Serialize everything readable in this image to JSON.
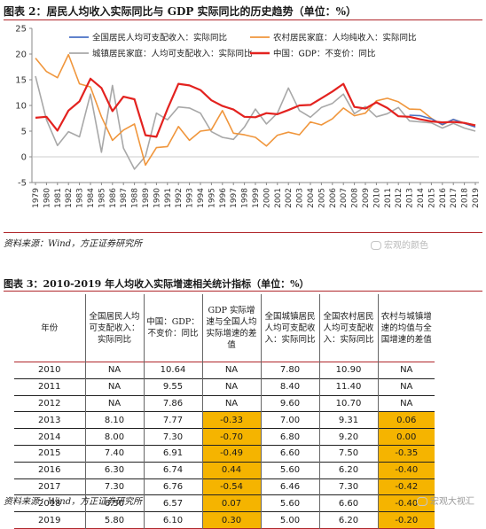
{
  "figure2": {
    "title": "图表 2：居民人均收入实际同比与 GDP 实际同比的历史趋势（单位：%）",
    "source": "资料来源：Wind，方正证券研究所",
    "watermark": "宏观的颜色"
  },
  "chart_data": {
    "type": "line",
    "x": [
      "1979",
      "1980",
      "1981",
      "1982",
      "1983",
      "1984",
      "1985",
      "1986",
      "1987",
      "1988",
      "1989",
      "1990",
      "1991",
      "1992",
      "1993",
      "1994",
      "1995",
      "1996",
      "1997",
      "1998",
      "1999",
      "2000",
      "2001",
      "2002",
      "2003",
      "2004",
      "2005",
      "2006",
      "2007",
      "2008",
      "2009",
      "2010",
      "2011",
      "2012",
      "2013",
      "2014",
      "2015",
      "2016",
      "2017",
      "2018",
      "2019"
    ],
    "ylim": [
      -5,
      25
    ],
    "yticks": [
      "-5",
      "0",
      "5",
      "10",
      "15",
      "20",
      "25"
    ],
    "legend": "top, inside, 2 columns",
    "grid": false,
    "series": [
      {
        "name": "全国居民人均可支配收入：实际同比",
        "color": "#4a70c4",
        "values": [
          null,
          null,
          null,
          null,
          null,
          null,
          null,
          null,
          null,
          null,
          null,
          null,
          null,
          null,
          null,
          null,
          null,
          null,
          null,
          null,
          null,
          null,
          null,
          null,
          null,
          null,
          null,
          null,
          null,
          null,
          null,
          null,
          null,
          null,
          8.1,
          8.0,
          7.4,
          6.3,
          7.3,
          6.5,
          5.8
        ]
      },
      {
        "name": "农村居民家庭：人均纯收入：实际同比",
        "color": "#f0963c",
        "values": [
          19.2,
          16.6,
          15.4,
          19.9,
          14.2,
          13.6,
          7.8,
          3.2,
          5.2,
          6.4,
          -1.6,
          1.8,
          2.0,
          5.9,
          3.2,
          5.0,
          5.3,
          9.0,
          4.6,
          4.3,
          3.8,
          2.1,
          4.2,
          4.8,
          4.3,
          6.8,
          6.2,
          7.4,
          9.5,
          8.0,
          8.5,
          10.9,
          11.4,
          10.7,
          9.3,
          9.2,
          7.5,
          6.2,
          7.3,
          6.6,
          6.2
        ]
      },
      {
        "name": "城镇居民家庭：人均可支配收入：实际同比",
        "color": "#a8a8a8",
        "values": [
          15.7,
          7.2,
          2.2,
          4.9,
          3.9,
          12.2,
          0.9,
          13.9,
          1.7,
          -2.4,
          0.1,
          8.5,
          7.2,
          9.7,
          9.5,
          8.5,
          4.9,
          3.8,
          3.4,
          5.8,
          9.3,
          6.4,
          8.5,
          13.4,
          9.0,
          7.7,
          9.6,
          10.4,
          12.2,
          8.4,
          9.8,
          7.8,
          8.4,
          9.6,
          7.0,
          6.8,
          6.6,
          5.6,
          6.5,
          5.6,
          5.0
        ]
      },
      {
        "name": "中国：GDP：不变价：同比",
        "color": "#e3221f",
        "values": [
          7.6,
          7.8,
          5.1,
          9.0,
          10.8,
          15.2,
          13.4,
          8.9,
          11.7,
          11.2,
          4.2,
          3.9,
          9.3,
          14.2,
          13.9,
          13.0,
          11.0,
          9.9,
          9.2,
          7.8,
          7.7,
          8.5,
          8.3,
          9.1,
          10.0,
          10.1,
          11.4,
          12.7,
          14.2,
          9.7,
          9.4,
          10.6,
          9.5,
          7.9,
          7.8,
          7.3,
          6.9,
          6.7,
          6.8,
          6.6,
          6.1
        ]
      }
    ]
  },
  "table": {
    "title": "图表 3：2010-2019 年人均收入实际增速相关统计指标（单位：%）",
    "headers": [
      "年份",
      "全国居民人均可支配收入：实际同比",
      "中国：GDP：不变价：同比",
      "GDP 实际增速与全国人均实际增速的差值",
      "全国城镇居民人均可支配收入：实际同比",
      "全国农村居民人均可支配收入：实际同比",
      "农村与城镇增速的均值与全国增速的差值"
    ],
    "rows": [
      {
        "year": "2010",
        "national": "NA",
        "gdp": "10.64",
        "gap": "NA",
        "urban": "7.80",
        "rural": "10.90",
        "ur_gap": "NA"
      },
      {
        "year": "2011",
        "national": "NA",
        "gdp": "9.55",
        "gap": "NA",
        "urban": "8.40",
        "rural": "11.40",
        "ur_gap": "NA"
      },
      {
        "year": "2012",
        "national": "NA",
        "gdp": "7.86",
        "gap": "NA",
        "urban": "9.60",
        "rural": "10.70",
        "ur_gap": "NA"
      },
      {
        "year": "2013",
        "national": "8.10",
        "gdp": "7.77",
        "gap": "-0.33",
        "urban": "7.00",
        "rural": "9.31",
        "ur_gap": "0.06"
      },
      {
        "year": "2014",
        "national": "8.00",
        "gdp": "7.30",
        "gap": "-0.70",
        "urban": "6.80",
        "rural": "9.20",
        "ur_gap": "0.00"
      },
      {
        "year": "2015",
        "national": "7.40",
        "gdp": "6.91",
        "gap": "-0.49",
        "urban": "6.60",
        "rural": "7.50",
        "ur_gap": "-0.35"
      },
      {
        "year": "2016",
        "national": "6.30",
        "gdp": "6.74",
        "gap": "0.44",
        "urban": "5.60",
        "rural": "6.20",
        "ur_gap": "-0.40"
      },
      {
        "year": "2017",
        "national": "7.30",
        "gdp": "6.76",
        "gap": "-0.54",
        "urban": "6.46",
        "rural": "7.30",
        "ur_gap": "-0.42"
      },
      {
        "year": "2018",
        "national": "6.50",
        "gdp": "6.57",
        "gap": "0.07",
        "urban": "5.60",
        "rural": "6.60",
        "ur_gap": "-0.40"
      },
      {
        "year": "2019",
        "national": "5.80",
        "gdp": "6.10",
        "gap": "0.30",
        "urban": "5.00",
        "rural": "6.20",
        "ur_gap": "-0.20"
      }
    ],
    "source": "资料来源：Wind，方正证券研究所",
    "watermark": "宏观大视汇",
    "highlight_color": "#f5b400"
  }
}
